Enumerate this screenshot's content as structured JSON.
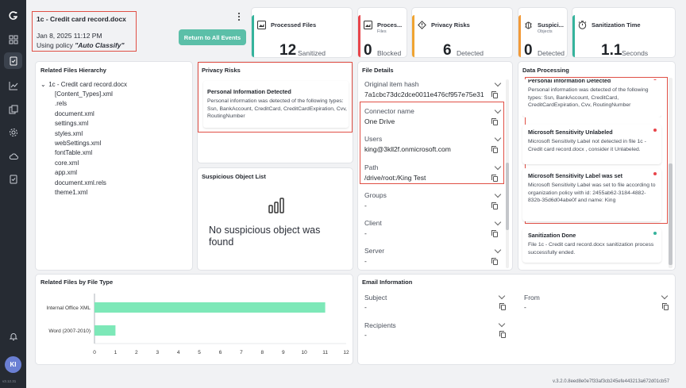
{
  "header": {
    "file_name": "1c - Credit card record.docx",
    "datetime": "Jan 8, 2025 11:12 PM",
    "policy_prefix": "Using policy ",
    "policy_name": "\"Auto Classify\"",
    "return_button": "Return to All Events",
    "more_icon": "more-vertical-icon"
  },
  "stats": [
    {
      "label": "Processed Files",
      "sub": "",
      "value": "12",
      "unit": "Sanitized",
      "color": "#35b39c",
      "icon": "files-icon"
    },
    {
      "label": "Proces...",
      "sub": "Files",
      "value": "0",
      "unit": "Blocked",
      "color": "#e8454b",
      "icon": "files-icon"
    },
    {
      "label": "Privacy Risks",
      "sub": "",
      "value": "6",
      "unit": "Detected",
      "color": "#f0a431",
      "icon": "warning-icon"
    },
    {
      "label": "Suspici...",
      "sub": "Objects",
      "value": "0",
      "unit": "Detected",
      "color": "#f29a38",
      "icon": "bug-icon"
    },
    {
      "label": "Sanitization Time",
      "sub": "",
      "value": "1.1",
      "unit": "Seconds",
      "color": "#35b39c",
      "icon": "timer-icon"
    }
  ],
  "hierarchy": {
    "title": "Related Files Hierarchy",
    "root": "1c - Credit card record.docx",
    "items": [
      "[Content_Types].xml",
      ".rels",
      "document.xml",
      "settings.xml",
      "styles.xml",
      "webSettings.xml",
      "fontTable.xml",
      "core.xml",
      "app.xml",
      "document.xml.rels",
      "theme1.xml"
    ]
  },
  "privacy": {
    "title": "Privacy Risks",
    "item_title": "Personal Information Detected",
    "item_body": "Personal information was detected of the following types: Ssn, BankAccount, CreditCard, CreditCardExpiration, Cvv, RoutingNumber"
  },
  "suspicious": {
    "title": "Suspicious Object List",
    "empty_text": "No suspicious object was found",
    "icon": "bar-chart-icon"
  },
  "file_details": {
    "title": "File Details",
    "fields": [
      {
        "label": "Original item hash",
        "value": "7a1cbc73dc2dce0011e476cf957e75e31"
      },
      {
        "label": "Connector name",
        "value": "One Drive"
      },
      {
        "label": "Users",
        "value": "king@3kll2f.onmicrosoft.com"
      },
      {
        "label": "Path",
        "value": "/drive/root:/King Test"
      },
      {
        "label": "Groups",
        "value": "-"
      },
      {
        "label": "Client",
        "value": "-"
      },
      {
        "label": "Server",
        "value": "-"
      }
    ]
  },
  "data_processing": {
    "title": "Data Processing",
    "items": [
      {
        "title": "Personal Information Detected",
        "body": "Personal information was detected of the following types: Ssn, BankAccount, CreditCard, CreditCardExpiration, Cvv, RoutingNumber",
        "status_color": "#e8454b"
      },
      {
        "title": "Microsoft Sensitivity Unlabeled",
        "body": "Microsoft Sensitivity Label not detected in file 1c - Credit card record.docx , consider it Unlabeled.",
        "status_color": "#e8454b"
      },
      {
        "title": "Microsoft Sensitivity Label was set",
        "body": "Microsoft Sensitivity Label was set to file according to organization policy with id: 2455ab62-3184-4882-832b-35d6d04abe0f and name: King",
        "status_color": "#e8454b"
      },
      {
        "title": "Sanitization Done",
        "body": "File 1c - Credit card record.docx sanitization process successfully ended.",
        "status_color": "#35b39c"
      }
    ]
  },
  "chart_section": {
    "title": "Related Files by File Type"
  },
  "chart_data": {
    "type": "bar",
    "orientation": "horizontal",
    "categories": [
      "Internal Office XML",
      "Word (2007-2010)"
    ],
    "values": [
      11,
      1
    ],
    "xlim": [
      0,
      12
    ],
    "xticks": [
      "0",
      "1",
      "2",
      "3",
      "4",
      "5",
      "6",
      "7",
      "8",
      "9",
      "10",
      "11",
      "12"
    ],
    "bar_color": "#7de8b8",
    "title": "",
    "xlabel": "",
    "ylabel": ""
  },
  "email": {
    "title": "Email Information",
    "fields": [
      {
        "label": "Subject",
        "value": "-"
      },
      {
        "label": "From",
        "value": "-"
      },
      {
        "label": "Recipients",
        "value": "-"
      }
    ]
  },
  "footer": {
    "version": "v.3.2.0.8eed8e0e7f33af3cb245efe443213a672d01cb57",
    "rail_version": "v3.12.31"
  },
  "user": {
    "initials": "KI"
  },
  "rail_icons": [
    "logo-icon",
    "dashboard-icon",
    "events-icon",
    "analytics-icon",
    "reports-icon",
    "settings-icon",
    "cloud-icon",
    "policy-icon",
    "bell-icon"
  ]
}
